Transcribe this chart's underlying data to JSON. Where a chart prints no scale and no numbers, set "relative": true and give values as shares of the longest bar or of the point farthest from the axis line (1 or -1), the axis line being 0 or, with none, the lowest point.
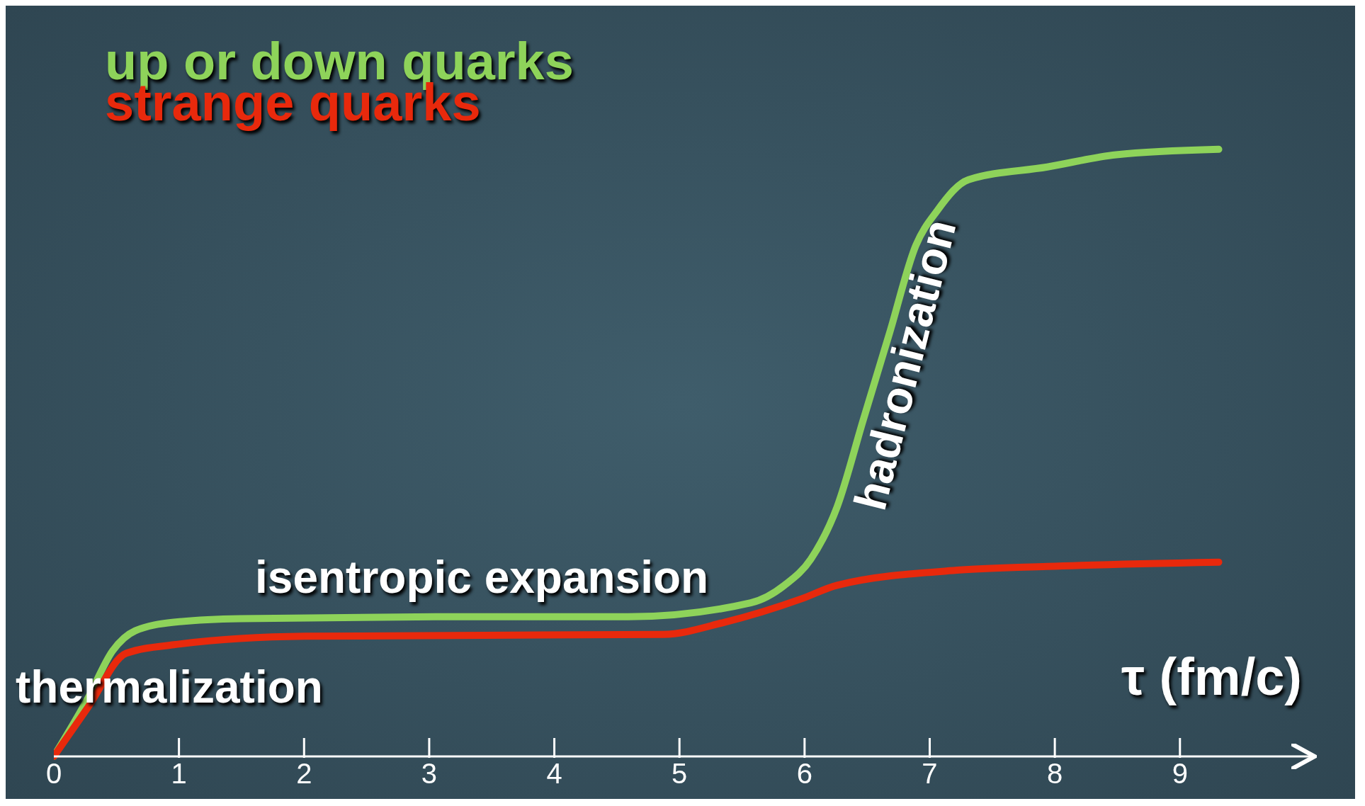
{
  "chart_data": {
    "type": "line",
    "relative": true,
    "xlabel": "τ (fm/c)",
    "xlim": [
      0,
      10.06
    ],
    "xticks": [
      0,
      1,
      2,
      3,
      4,
      5,
      6,
      7,
      8,
      9
    ],
    "legend": "top left",
    "marker": "none",
    "line_style": "solid",
    "series": [
      {
        "name": "up or down quarks",
        "color": "#8ed35a",
        "x": [
          0,
          0.27,
          0.47,
          0.65,
          0.96,
          1.49,
          3.05,
          4.59,
          5.57,
          5.84,
          6.05,
          6.26,
          6.47,
          6.68,
          6.89,
          7.06,
          7.31,
          7.94,
          8.49,
          9.31
        ],
        "values": [
          0,
          0.095,
          0.174,
          0.207,
          0.221,
          0.227,
          0.23,
          0.23,
          0.253,
          0.282,
          0.325,
          0.411,
          0.555,
          0.698,
          0.842,
          0.899,
          0.95,
          0.971,
          0.991,
          1
        ]
      },
      {
        "name": "strange quarks",
        "color": "#e8290c",
        "x": [
          0,
          0.27,
          0.58,
          0.96,
          2.01,
          4.87,
          5.36,
          5.98,
          6.26,
          7.24,
          7.94,
          9.31
        ],
        "values": [
          0,
          0.08,
          0.17,
          0.184,
          0.198,
          0.201,
          0.221,
          0.26,
          0.282,
          0.307,
          0.313,
          0.32
        ]
      }
    ],
    "annotations": [
      "thermalization",
      "isentropic expansion",
      "hadronization"
    ]
  }
}
